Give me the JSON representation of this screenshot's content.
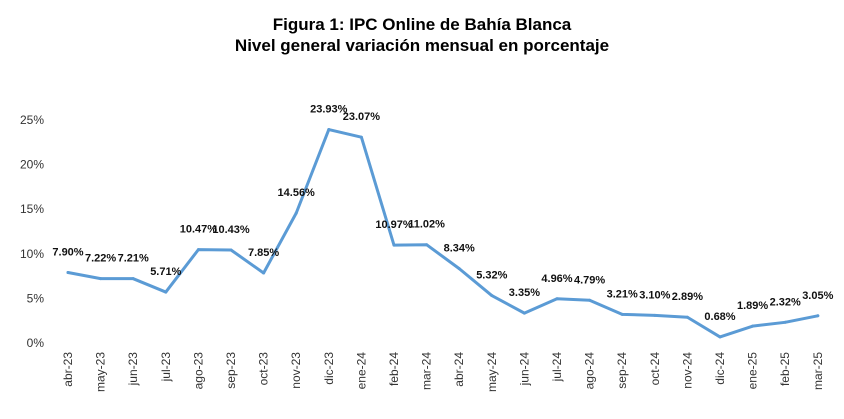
{
  "chart_data": {
    "type": "line",
    "title": "Figura 1: IPC Online de Bahía Blanca",
    "subtitle": "Nivel general variación mensual en porcentaje",
    "categories": [
      "abr-23",
      "may-23",
      "jun-23",
      "jul-23",
      "ago-23",
      "sep-23",
      "oct-23",
      "nov-23",
      "dic-23",
      "ene-24",
      "feb-24",
      "mar-24",
      "abr-24",
      "may-24",
      "jun-24",
      "jul-24",
      "ago-24",
      "sep-24",
      "oct-24",
      "nov-24",
      "dic-24",
      "ene-25",
      "feb-25",
      "mar-25"
    ],
    "series": [
      {
        "values": [
          7.9,
          7.22,
          7.21,
          5.71,
          10.47,
          10.43,
          7.85,
          14.56,
          23.93,
          23.07,
          10.97,
          11.02,
          8.34,
          5.32,
          3.35,
          4.96,
          4.79,
          3.21,
          3.1,
          2.89,
          0.68,
          1.89,
          2.32,
          3.05
        ],
        "labels": [
          "7.90%",
          "7.22%",
          "7.21%",
          "5.71%",
          "10.47%",
          "10.43%",
          "7.85%",
          "14.56%",
          "23.93%",
          "23.07%",
          "10.97%",
          "11.02%",
          "8.34%",
          "5.32%",
          "3.35%",
          "4.96%",
          "4.79%",
          "3.21%",
          "3.10%",
          "2.89%",
          "0.68%",
          "1.89%",
          "2.32%",
          "3.05%"
        ]
      }
    ],
    "y_ticks": [
      "0%",
      "5%",
      "10%",
      "15%",
      "20%",
      "25%"
    ],
    "ylim": [
      0,
      25
    ],
    "grid": false,
    "legend": false,
    "line_color": "#5B9BD5"
  }
}
